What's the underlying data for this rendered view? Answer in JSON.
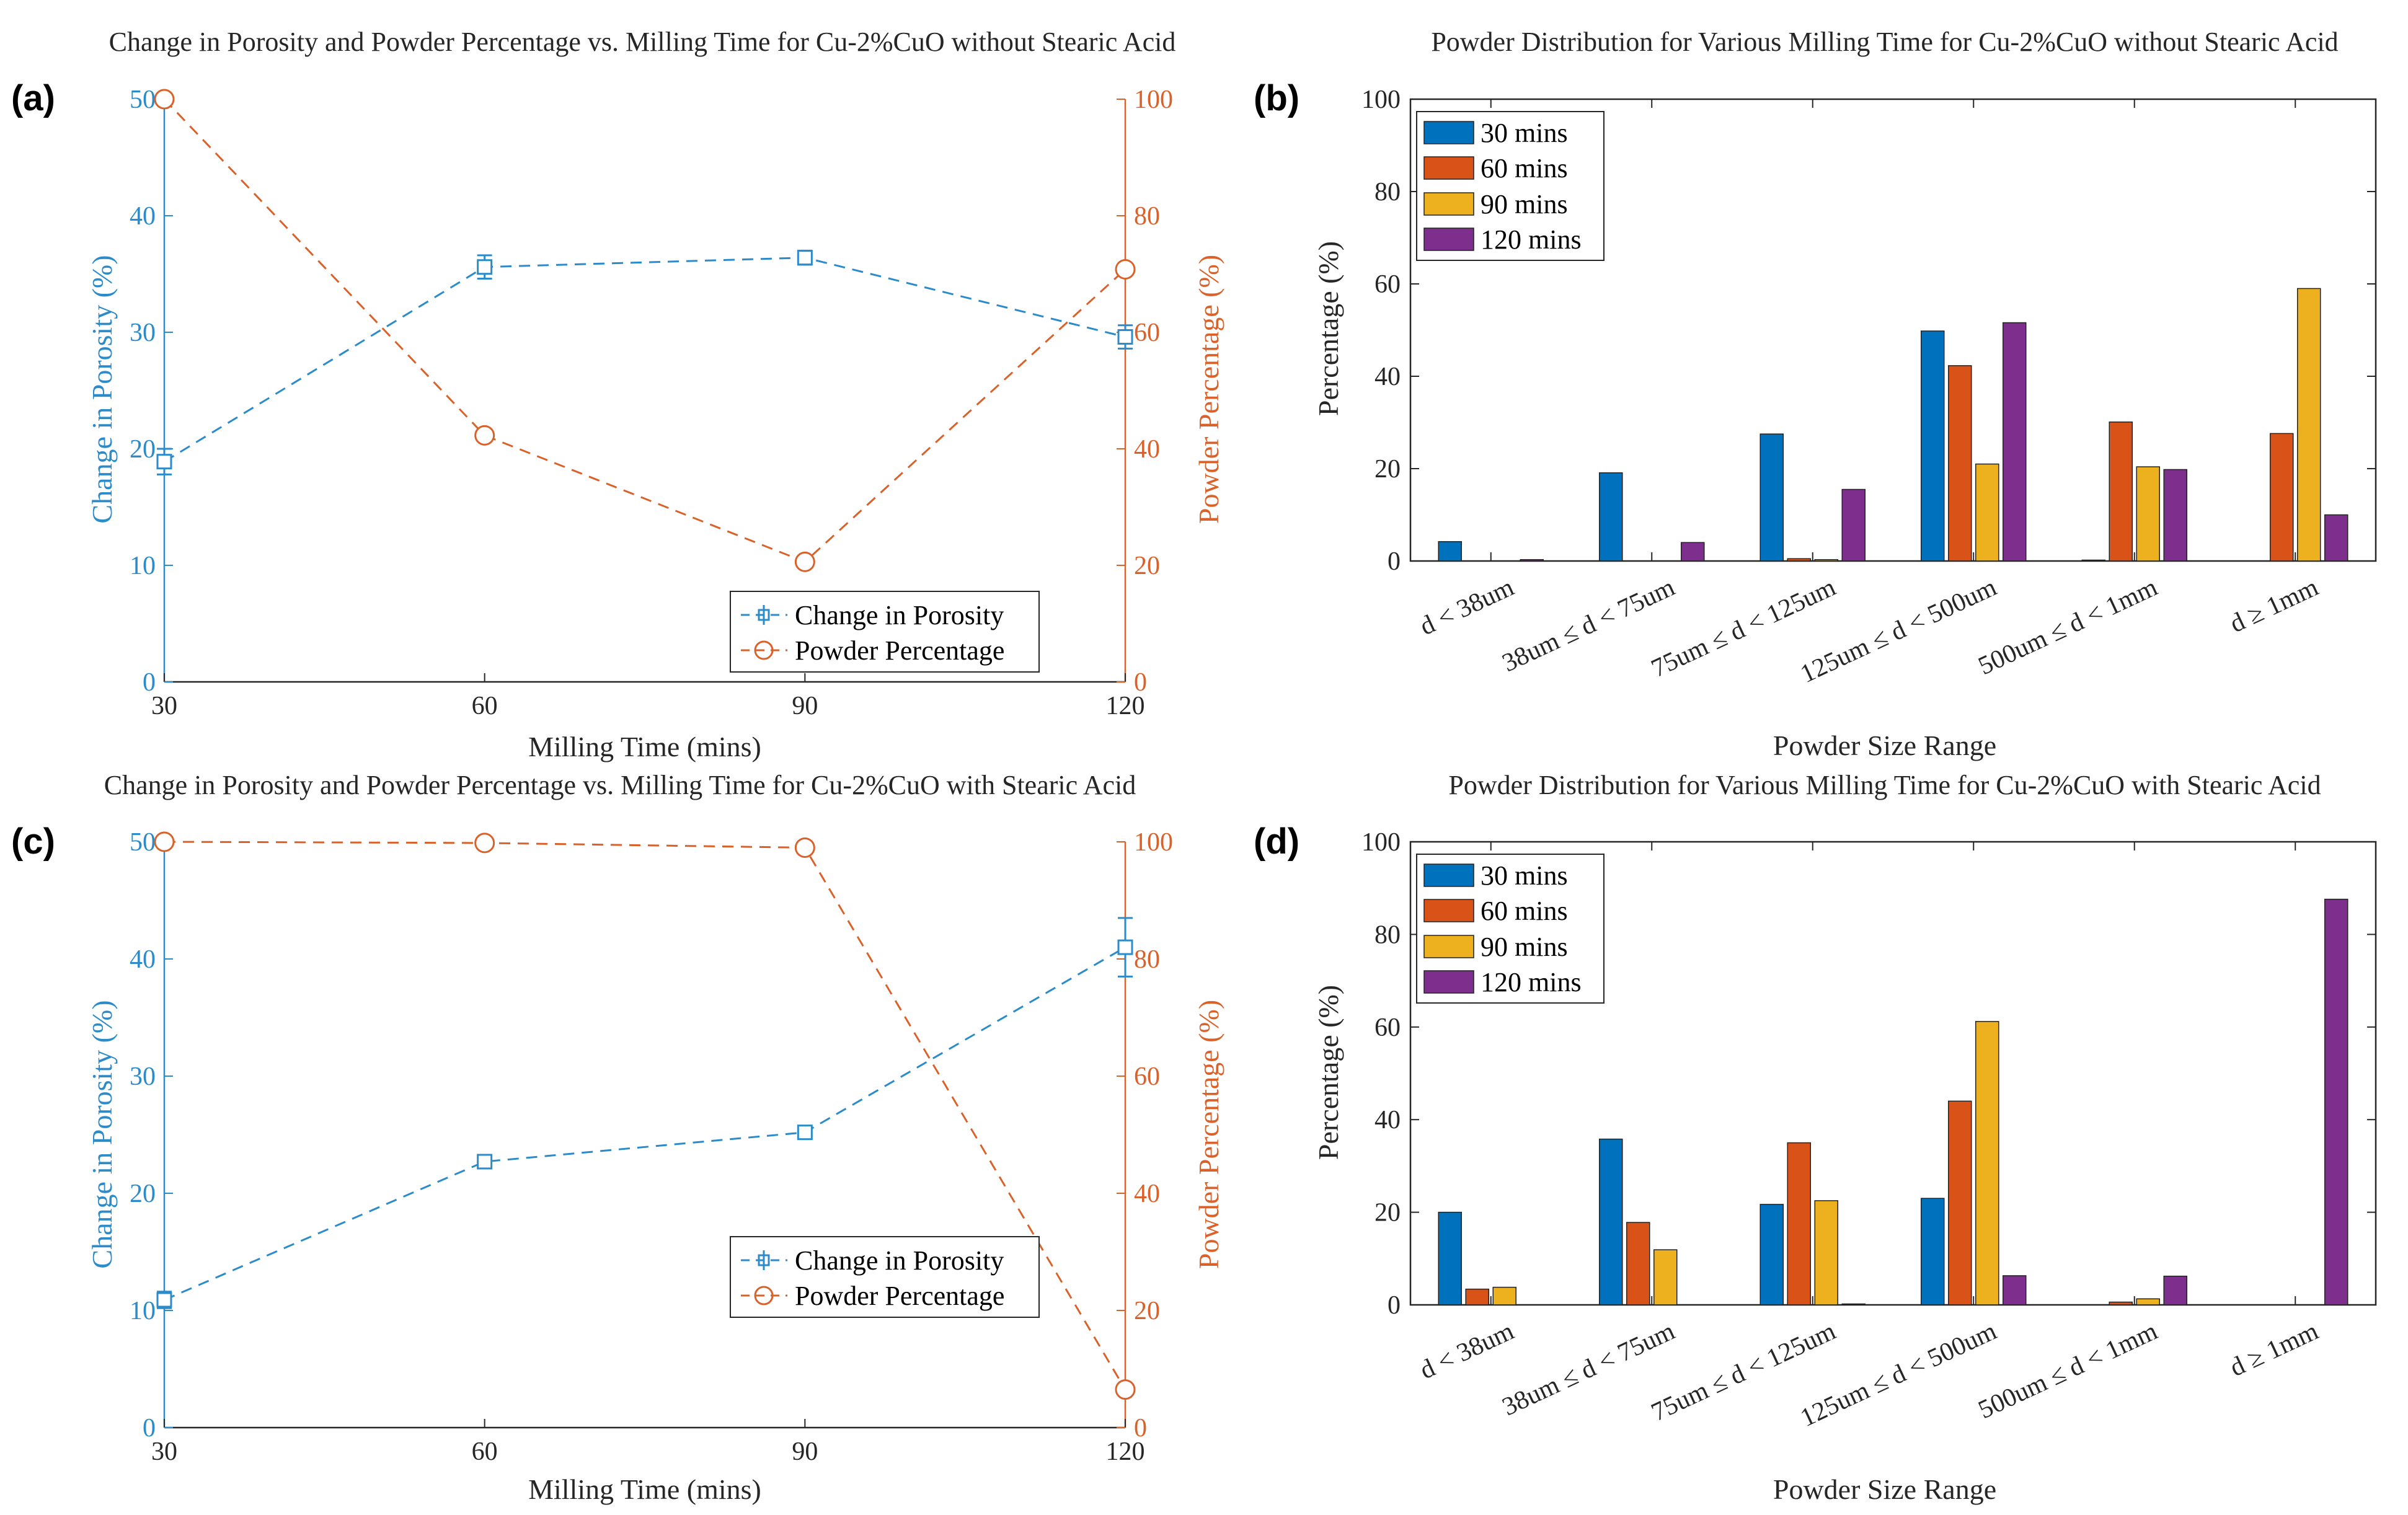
{
  "chart_data": [
    {
      "type": "line",
      "panel_label": "(a)",
      "title": "Change in Porosity and Powder Percentage vs. Milling Time for Cu-2%CuO without Stearic Acid",
      "xlabel": "Milling Time (mins)",
      "ylabel_left": "Change in Porosity (%)",
      "ylabel_right": "Powder Percentage (%)",
      "x": [
        30,
        60,
        90,
        120
      ],
      "xlim": [
        30,
        120
      ],
      "xticks": [
        "30",
        "60",
        "90",
        "120"
      ],
      "ylim_left": [
        0,
        50
      ],
      "yticks_left": [
        "0",
        "10",
        "20",
        "30",
        "40",
        "50"
      ],
      "ylim_right": [
        0,
        100
      ],
      "yticks_right": [
        "0",
        "20",
        "40",
        "60",
        "80",
        "100"
      ],
      "legend_position": "bottom-right",
      "series": [
        {
          "name": "Change in Porosity",
          "axis": "left",
          "marker": "square",
          "color": "#2C8BC9",
          "values": [
            18.9,
            35.6,
            36.4,
            29.6
          ],
          "errors": [
            1.1,
            1.0,
            0.6,
            1.0
          ]
        },
        {
          "name": "Powder Percentage",
          "axis": "right",
          "marker": "circle",
          "color": "#D9622B",
          "values": [
            100,
            42.3,
            20.6,
            70.8
          ]
        }
      ]
    },
    {
      "type": "bar",
      "panel_label": "(b)",
      "title": "Powder Distribution for Various Milling Time for Cu-2%CuO without Stearic Acid",
      "xlabel": "Powder Size Range",
      "ylabel": "Percentage (%)",
      "ylim": [
        0,
        100
      ],
      "yticks": [
        "0",
        "20",
        "40",
        "60",
        "80",
        "100"
      ],
      "legend_position": "top-left",
      "categories": [
        "d < 38um",
        "38um ≤ d < 75um",
        "75um ≤ d < 125um",
        "125um ≤ d < 500um",
        "500um ≤ d < 1mm",
        "d ≥ 1mm"
      ],
      "series": [
        {
          "name": "30 mins",
          "color": "#0072BD",
          "values": [
            4.2,
            19.1,
            27.5,
            49.8,
            0.2,
            0
          ]
        },
        {
          "name": "60 mins",
          "color": "#D95319",
          "values": [
            0,
            0,
            0.5,
            42.3,
            30.1,
            27.6
          ]
        },
        {
          "name": "90 mins",
          "color": "#EDB120",
          "values": [
            0,
            0,
            0.3,
            21.0,
            20.4,
            59.0
          ]
        },
        {
          "name": "120 mins",
          "color": "#7E2F8E",
          "values": [
            0.3,
            4.0,
            15.5,
            51.6,
            19.8,
            10.0
          ]
        }
      ]
    },
    {
      "type": "line",
      "panel_label": "(c)",
      "title": "Change in Porosity and Powder Percentage vs. Milling Time for Cu-2%CuO with Stearic Acid",
      "xlabel": "Milling Time (mins)",
      "ylabel_left": "Change in Porosity (%)",
      "ylabel_right": "Powder Percentage (%)",
      "x": [
        30,
        60,
        90,
        120
      ],
      "xlim": [
        30,
        120
      ],
      "xticks": [
        "30",
        "60",
        "90",
        "120"
      ],
      "ylim_left": [
        0,
        50
      ],
      "yticks_left": [
        "0",
        "10",
        "20",
        "30",
        "40",
        "50"
      ],
      "ylim_right": [
        0,
        100
      ],
      "yticks_right": [
        "0",
        "20",
        "40",
        "60",
        "80",
        "100"
      ],
      "legend_position": "bottom-right",
      "series": [
        {
          "name": "Change in Porosity",
          "axis": "left",
          "marker": "square",
          "color": "#2C8BC9",
          "values": [
            10.9,
            22.7,
            25.2,
            41.0
          ],
          "errors": [
            0.7,
            0.5,
            0.5,
            2.5
          ]
        },
        {
          "name": "Powder Percentage",
          "axis": "right",
          "marker": "circle",
          "color": "#D9622B",
          "values": [
            100,
            99.8,
            99,
            6.5
          ]
        }
      ]
    },
    {
      "type": "bar",
      "panel_label": "(d)",
      "title": "Powder Distribution for Various Milling Time for Cu-2%CuO with Stearic Acid",
      "xlabel": "Powder Size Range",
      "ylabel": "Percentage (%)",
      "ylim": [
        0,
        100
      ],
      "yticks": [
        "0",
        "20",
        "40",
        "60",
        "80",
        "100"
      ],
      "legend_position": "top-left",
      "categories": [
        "d < 38um",
        "38um ≤ d < 75um",
        "75um ≤ d < 125um",
        "125um ≤ d < 500um",
        "500um ≤ d < 1mm",
        "d ≥ 1mm"
      ],
      "series": [
        {
          "name": "30 mins",
          "color": "#0072BD",
          "values": [
            20.0,
            35.8,
            21.7,
            23.0,
            0,
            0
          ]
        },
        {
          "name": "60 mins",
          "color": "#D95319",
          "values": [
            3.4,
            17.8,
            35.0,
            44.0,
            0.6,
            0
          ]
        },
        {
          "name": "90 mins",
          "color": "#EDB120",
          "values": [
            3.8,
            11.9,
            22.5,
            61.2,
            1.3,
            0
          ]
        },
        {
          "name": "120 mins",
          "color": "#7E2F8E",
          "values": [
            0,
            0,
            0.2,
            6.3,
            6.2,
            87.6
          ]
        }
      ]
    }
  ]
}
